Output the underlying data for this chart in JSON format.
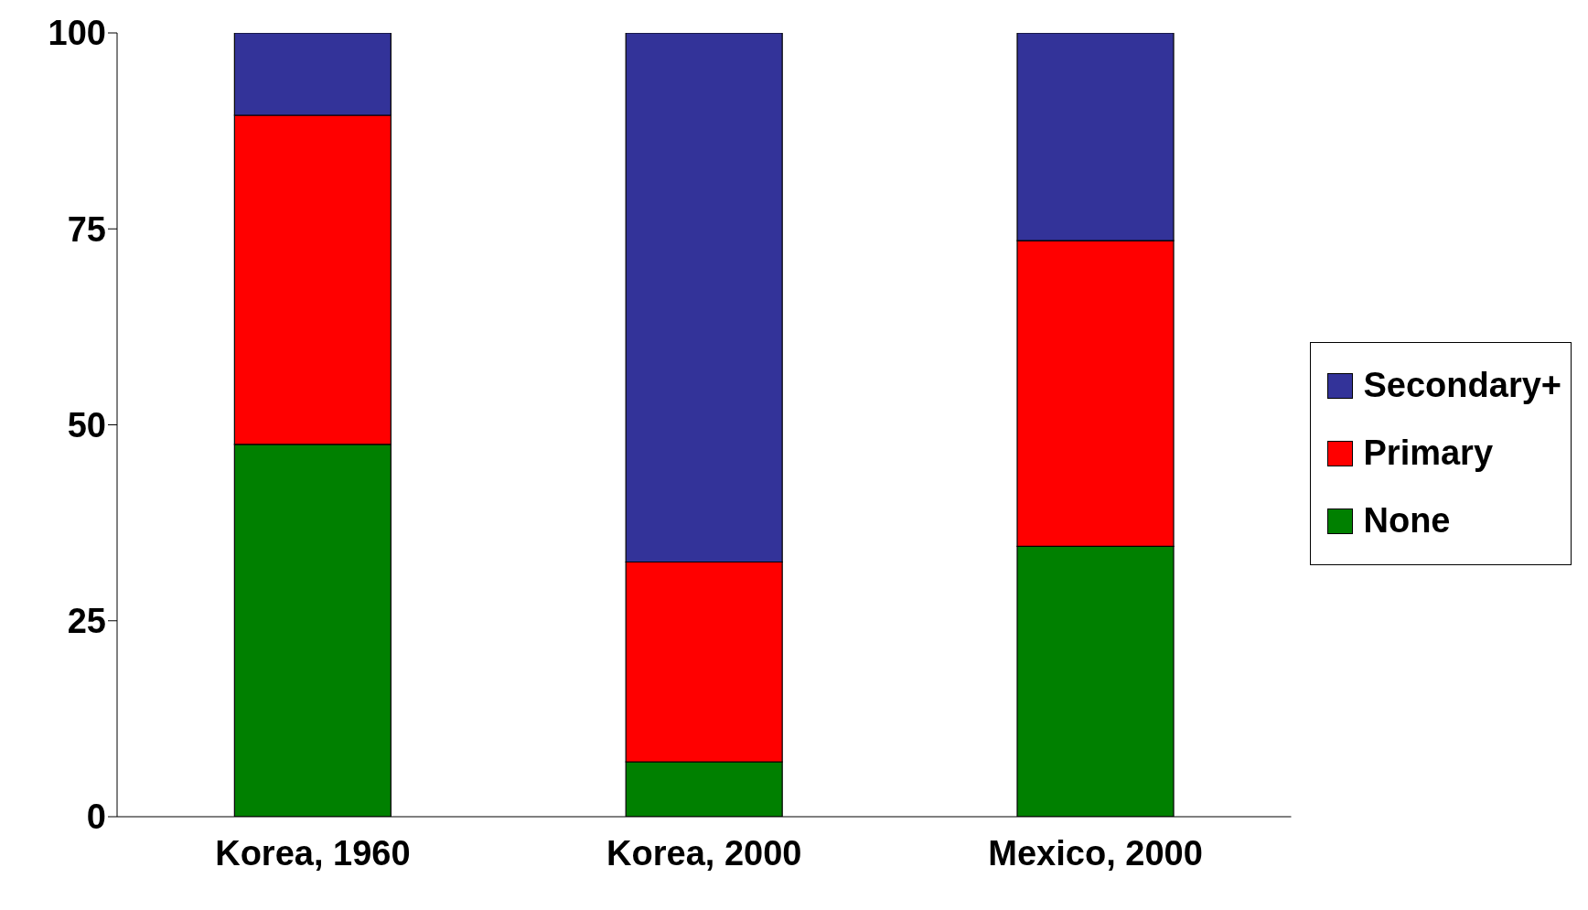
{
  "chart_data": {
    "type": "bar",
    "stacked": true,
    "categories": [
      "Korea, 1960",
      "Korea, 2000",
      "Mexico, 2000"
    ],
    "series": [
      {
        "name": "None",
        "color": "#008000",
        "values": [
          47.5,
          7,
          34.5
        ]
      },
      {
        "name": "Primary",
        "color": "#ff0000",
        "values": [
          42,
          25.5,
          39
        ]
      },
      {
        "name": "Secondary+",
        "color": "#333399",
        "values": [
          10.5,
          67.5,
          26.5
        ]
      }
    ],
    "ylim": [
      0,
      100
    ],
    "yticks": [
      0,
      25,
      50,
      75,
      100
    ],
    "grid": false,
    "legend": "right"
  }
}
